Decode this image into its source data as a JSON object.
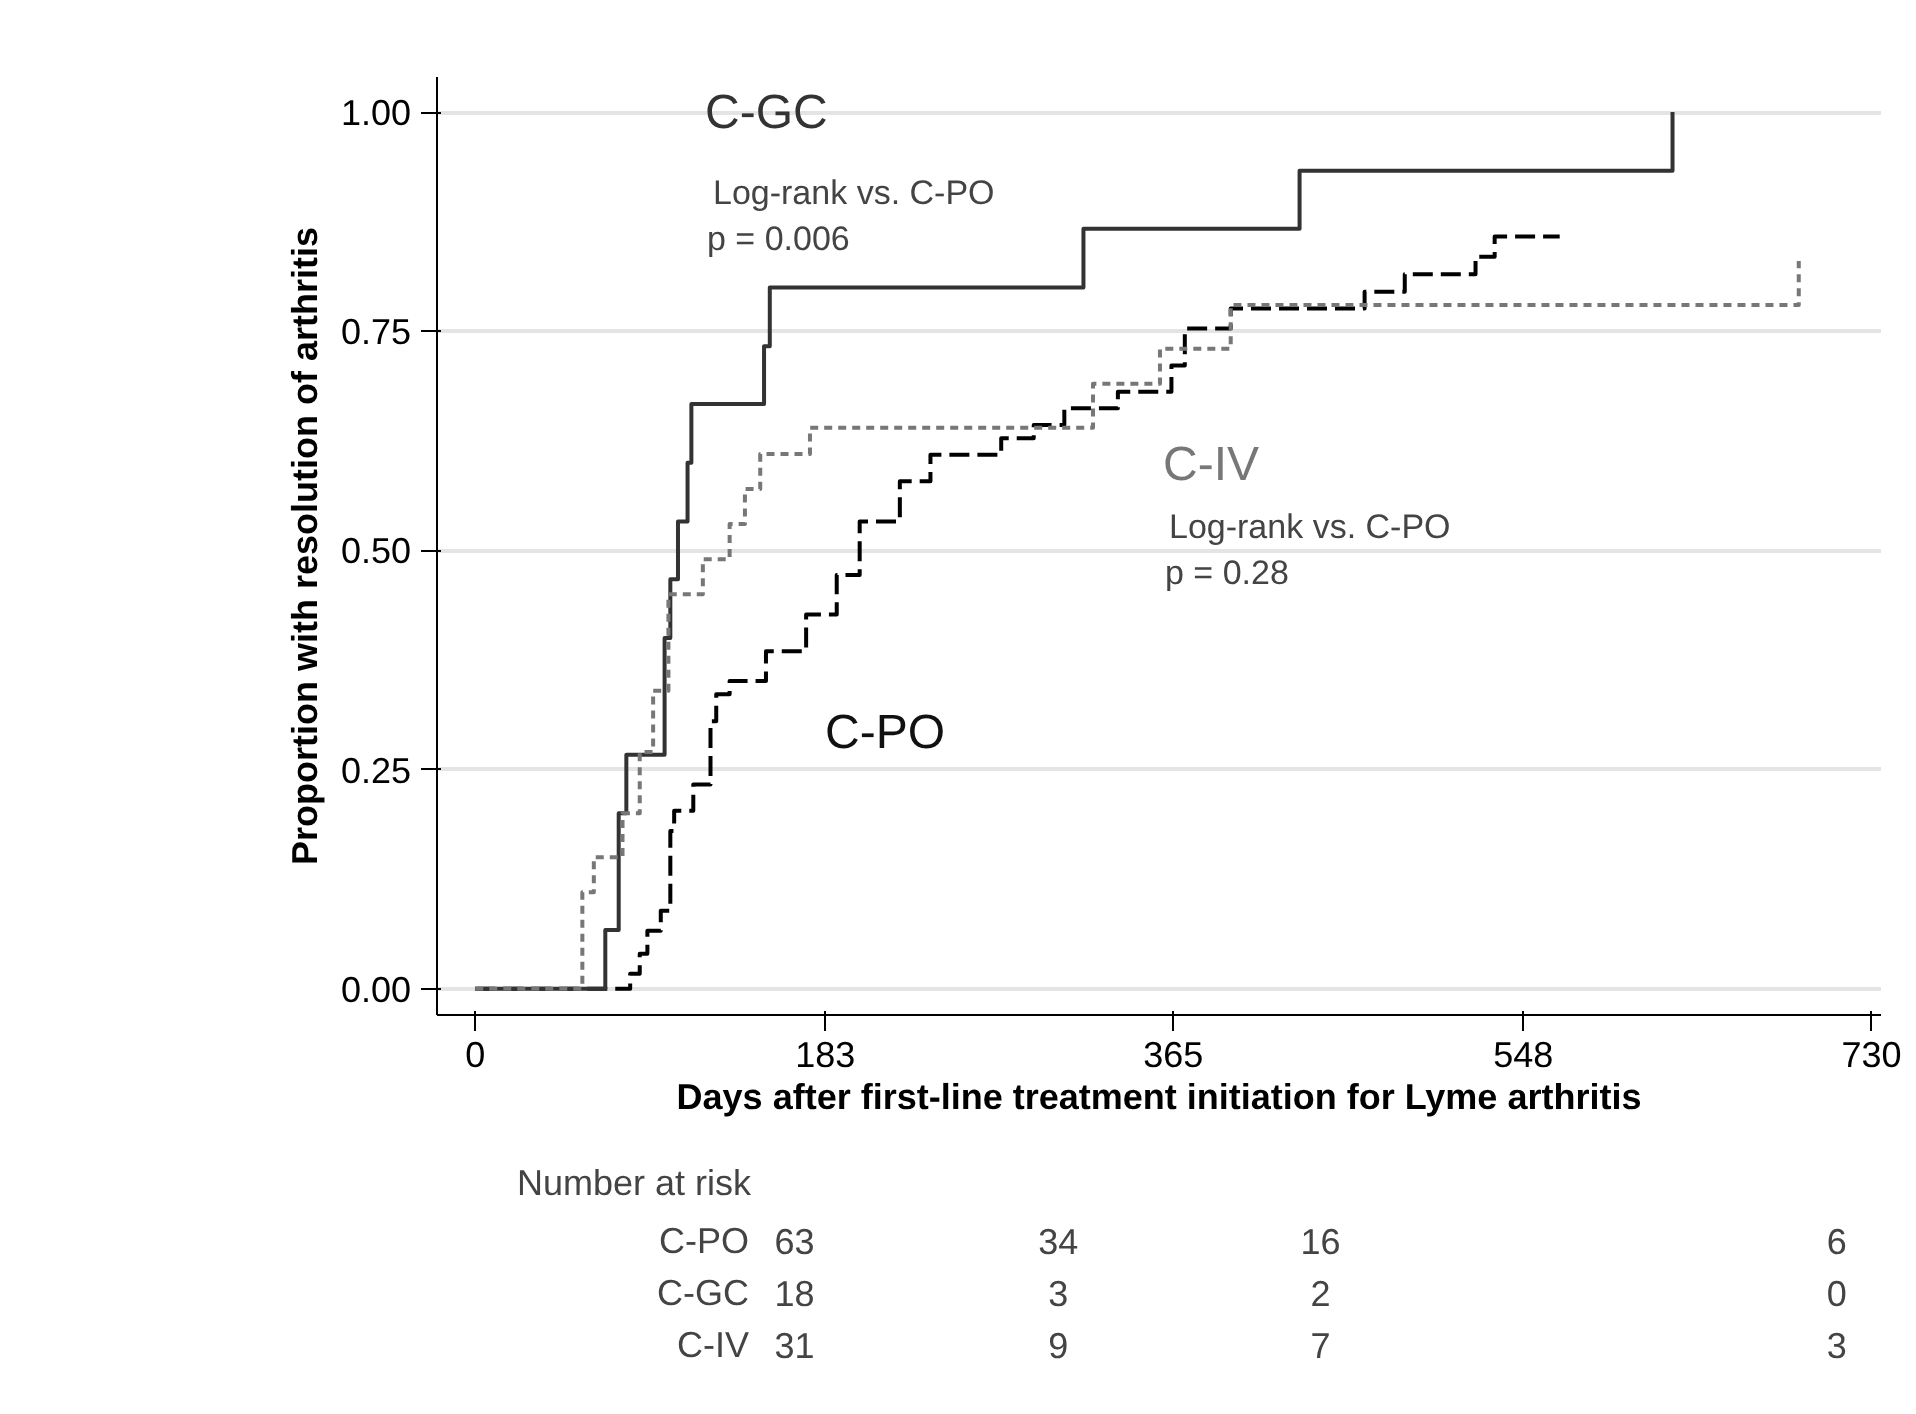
{
  "chart_data": {
    "type": "step",
    "xlabel": "Days after first-line treatment initiation for Lyme arthritis",
    "ylabel": "Proportion with resolution of arthritis",
    "xlim": [
      -20,
      735
    ],
    "ylim": [
      -0.03,
      1.04
    ],
    "xticks": [
      0,
      183,
      365,
      548,
      730
    ],
    "yticks": [
      {
        "value": 0,
        "label": "0.00"
      },
      {
        "value": 0.25,
        "label": "0.25"
      },
      {
        "value": 0.5,
        "label": "0.50"
      },
      {
        "value": 0.75,
        "label": "0.75"
      },
      {
        "value": 1,
        "label": "1.00"
      }
    ],
    "grid": "y",
    "series": [
      {
        "name": "C-PO",
        "color": "#000000",
        "line_style": "dashed",
        "x": [
          0,
          81,
          86,
          90,
          97,
          102,
          104,
          114,
          123,
          126,
          133,
          152,
          173,
          189,
          201,
          222,
          238,
          275,
          292,
          308,
          336,
          364,
          371,
          395,
          465,
          486,
          523,
          533,
          567
        ],
        "values": [
          0,
          0.017,
          0.04,
          0.066,
          0.089,
          0.18,
          0.203,
          0.233,
          0.305,
          0.336,
          0.351,
          0.385,
          0.427,
          0.472,
          0.533,
          0.579,
          0.609,
          0.628,
          0.643,
          0.662,
          0.681,
          0.711,
          0.753,
          0.776,
          0.795,
          0.815,
          0.835,
          0.858,
          0.858
        ]
      },
      {
        "name": "C-GC",
        "color": "#333333",
        "line_style": "solid",
        "x": [
          0,
          68,
          75,
          79,
          99,
          102,
          106,
          111,
          113,
          151,
          154,
          318,
          431,
          626
        ],
        "values": [
          0,
          0.067,
          0.2,
          0.267,
          0.4,
          0.467,
          0.533,
          0.6,
          0.667,
          0.733,
          0.8,
          0.867,
          0.933,
          1.0
        ]
      },
      {
        "name": "C-IV",
        "color": "#777777",
        "line_style": "dotted",
        "x": [
          0,
          56,
          62,
          77,
          86,
          93,
          101,
          119,
          133,
          141,
          149,
          175,
          323,
          358,
          395,
          692
        ],
        "values": [
          0,
          0.11,
          0.15,
          0.2,
          0.27,
          0.34,
          0.45,
          0.49,
          0.53,
          0.57,
          0.61,
          0.64,
          0.69,
          0.73,
          0.78,
          0.83
        ]
      }
    ],
    "annotations": [
      "Log-rank vs. C-PO",
      "p = 0.006",
      "Log-rank vs. C-PO",
      "p = 0.28",
      "Number at risk",
      "63",
      "34",
      "16",
      "6",
      "18",
      "3",
      "2",
      "0",
      "31",
      "9",
      "7",
      "3"
    ]
  }
}
